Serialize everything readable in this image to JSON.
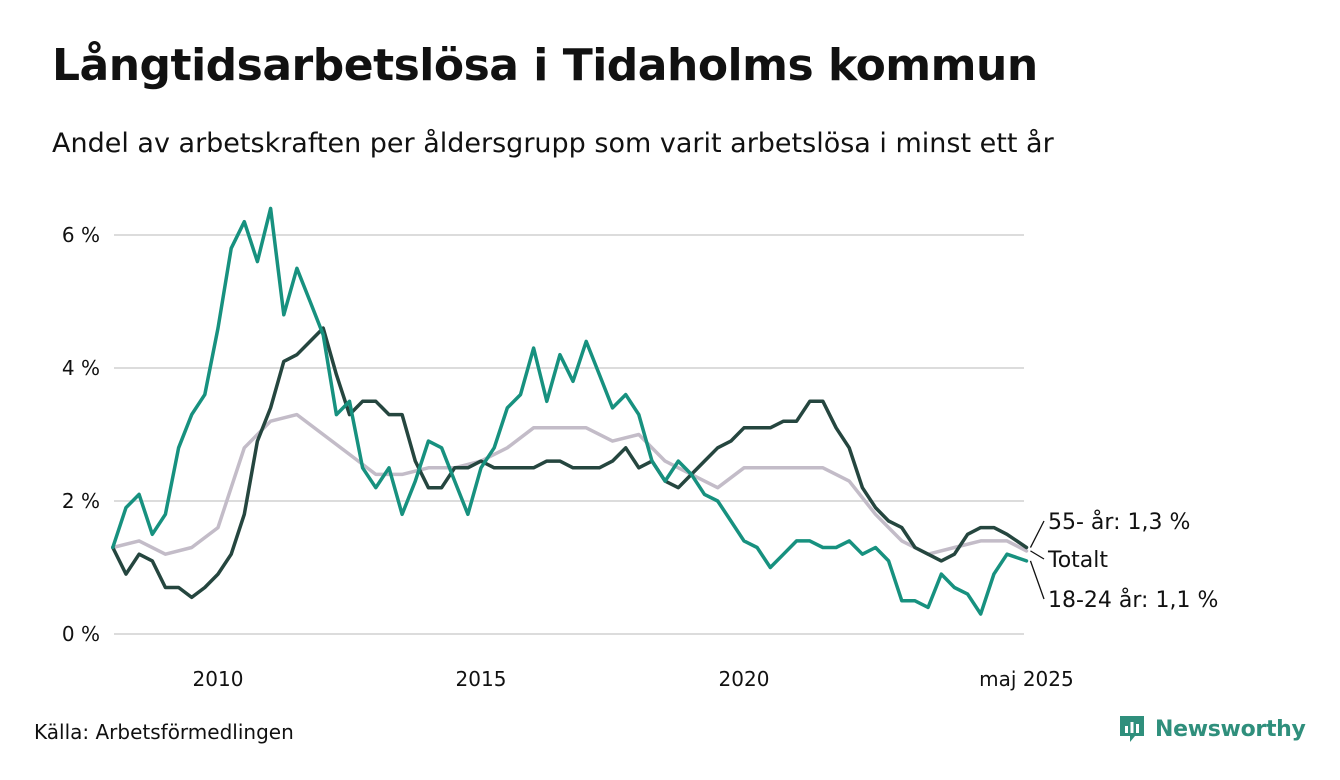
{
  "header": {
    "title": "Långtidsarbetslösa i Tidaholms kommun",
    "subtitle": "Andel av arbetskraften per åldersgrupp som varit arbetslösa i minst ett år"
  },
  "footer": {
    "source": "Källa: Arbetsförmedlingen",
    "brand": "Newsworthy"
  },
  "colors": {
    "youth": "#17917f",
    "older": "#25463f",
    "total": "#c3bcc8",
    "grid": "#dcdcdc",
    "brand": "#2f8f7c"
  },
  "chart_data": {
    "type": "line",
    "ylim": [
      0,
      6.6
    ],
    "xlim": [
      2008.0,
      2025.5
    ],
    "yticks": [
      {
        "value": 0,
        "label": "0 %"
      },
      {
        "value": 2,
        "label": "2 %"
      },
      {
        "value": 4,
        "label": "4 %"
      },
      {
        "value": 6,
        "label": "6 %"
      }
    ],
    "xticks": [
      {
        "value": 2010,
        "label": "2010"
      },
      {
        "value": 2015,
        "label": "2015"
      },
      {
        "value": 2020,
        "label": "2020"
      },
      {
        "value": 2025.37,
        "label": "maj 2025"
      }
    ],
    "grid": true,
    "legend": "end-labels",
    "end_labels": [
      {
        "series": "older",
        "text": "55- år: 1,3 %",
        "value": 1.3
      },
      {
        "series": "total",
        "text": "Totalt",
        "value": 1.25
      },
      {
        "series": "youth",
        "text": "18-24 år: 1,1 %",
        "value": 1.1
      }
    ],
    "series": [
      {
        "key": "total",
        "x": [
          2008.0,
          2008.5,
          2009.0,
          2009.5,
          2010.0,
          2010.5,
          2011.0,
          2011.5,
          2012.0,
          2012.5,
          2013.0,
          2013.5,
          2014.0,
          2014.5,
          2015.0,
          2015.5,
          2016.0,
          2016.5,
          2017.0,
          2017.5,
          2018.0,
          2018.5,
          2019.0,
          2019.5,
          2020.0,
          2020.5,
          2021.0,
          2021.5,
          2022.0,
          2022.5,
          2023.0,
          2023.5,
          2024.0,
          2024.5,
          2025.0,
          2025.37
        ],
        "values": [
          1.3,
          1.4,
          1.2,
          1.3,
          1.6,
          2.8,
          3.2,
          3.3,
          3.0,
          2.7,
          2.4,
          2.4,
          2.5,
          2.5,
          2.6,
          2.8,
          3.1,
          3.1,
          3.1,
          2.9,
          3.0,
          2.6,
          2.4,
          2.2,
          2.5,
          2.5,
          2.5,
          2.5,
          2.3,
          1.8,
          1.4,
          1.2,
          1.3,
          1.4,
          1.4,
          1.25
        ]
      },
      {
        "key": "older",
        "x": [
          2008.0,
          2008.25,
          2008.5,
          2008.75,
          2009.0,
          2009.25,
          2009.5,
          2009.75,
          2010.0,
          2010.25,
          2010.5,
          2010.75,
          2011.0,
          2011.25,
          2011.5,
          2011.75,
          2012.0,
          2012.25,
          2012.5,
          2012.75,
          2013.0,
          2013.25,
          2013.5,
          2013.75,
          2014.0,
          2014.25,
          2014.5,
          2014.75,
          2015.0,
          2015.25,
          2015.5,
          2015.75,
          2016.0,
          2016.25,
          2016.5,
          2016.75,
          2017.0,
          2017.25,
          2017.5,
          2017.75,
          2018.0,
          2018.25,
          2018.5,
          2018.75,
          2019.0,
          2019.25,
          2019.5,
          2019.75,
          2020.0,
          2020.25,
          2020.5,
          2020.75,
          2021.0,
          2021.25,
          2021.5,
          2021.75,
          2022.0,
          2022.25,
          2022.5,
          2022.75,
          2023.0,
          2023.25,
          2023.5,
          2023.75,
          2024.0,
          2024.25,
          2024.5,
          2024.75,
          2025.0,
          2025.37
        ],
        "values": [
          1.3,
          0.9,
          1.2,
          1.1,
          0.7,
          0.7,
          0.55,
          0.7,
          0.9,
          1.2,
          1.8,
          2.9,
          3.4,
          4.1,
          4.2,
          4.4,
          4.6,
          3.9,
          3.3,
          3.5,
          3.5,
          3.3,
          3.3,
          2.6,
          2.2,
          2.2,
          2.5,
          2.5,
          2.6,
          2.5,
          2.5,
          2.5,
          2.5,
          2.6,
          2.6,
          2.5,
          2.5,
          2.5,
          2.6,
          2.8,
          2.5,
          2.6,
          2.3,
          2.2,
          2.4,
          2.6,
          2.8,
          2.9,
          3.1,
          3.1,
          3.1,
          3.2,
          3.2,
          3.5,
          3.5,
          3.1,
          2.8,
          2.2,
          1.9,
          1.7,
          1.6,
          1.3,
          1.2,
          1.1,
          1.2,
          1.5,
          1.6,
          1.6,
          1.5,
          1.3
        ]
      },
      {
        "key": "youth",
        "x": [
          2008.0,
          2008.25,
          2008.5,
          2008.75,
          2009.0,
          2009.25,
          2009.5,
          2009.75,
          2010.0,
          2010.25,
          2010.5,
          2010.75,
          2011.0,
          2011.25,
          2011.5,
          2011.75,
          2012.0,
          2012.25,
          2012.5,
          2012.75,
          2013.0,
          2013.25,
          2013.5,
          2013.75,
          2014.0,
          2014.25,
          2014.5,
          2014.75,
          2015.0,
          2015.25,
          2015.5,
          2015.75,
          2016.0,
          2016.25,
          2016.5,
          2016.75,
          2017.0,
          2017.25,
          2017.5,
          2017.75,
          2018.0,
          2018.25,
          2018.5,
          2018.75,
          2019.0,
          2019.25,
          2019.5,
          2019.75,
          2020.0,
          2020.25,
          2020.5,
          2020.75,
          2021.0,
          2021.25,
          2021.5,
          2021.75,
          2022.0,
          2022.25,
          2022.5,
          2022.75,
          2023.0,
          2023.25,
          2023.5,
          2023.75,
          2024.0,
          2024.25,
          2024.5,
          2024.75,
          2025.0,
          2025.37
        ],
        "values": [
          1.3,
          1.9,
          2.1,
          1.5,
          1.8,
          2.8,
          3.3,
          3.6,
          4.6,
          5.8,
          6.2,
          5.6,
          6.4,
          4.8,
          5.5,
          5.0,
          4.5,
          3.3,
          3.5,
          2.5,
          2.2,
          2.5,
          1.8,
          2.3,
          2.9,
          2.8,
          2.3,
          1.8,
          2.5,
          2.8,
          3.4,
          3.6,
          4.3,
          3.5,
          4.2,
          3.8,
          4.4,
          3.9,
          3.4,
          3.6,
          3.3,
          2.6,
          2.3,
          2.6,
          2.4,
          2.1,
          2.0,
          1.7,
          1.4,
          1.3,
          1.0,
          1.2,
          1.4,
          1.4,
          1.3,
          1.3,
          1.4,
          1.2,
          1.3,
          1.1,
          0.5,
          0.5,
          0.4,
          0.9,
          0.7,
          0.6,
          0.3,
          0.9,
          1.2,
          1.1
        ]
      }
    ]
  }
}
